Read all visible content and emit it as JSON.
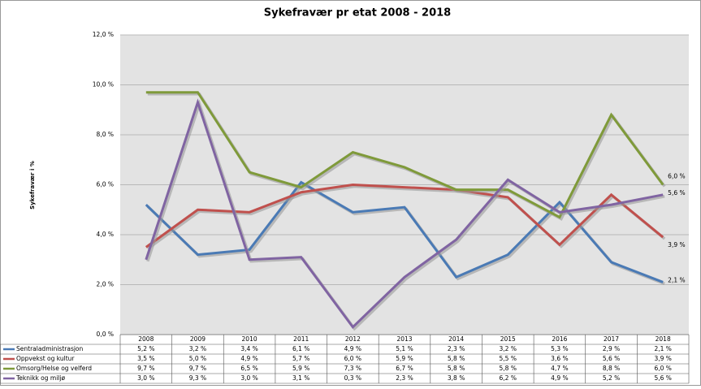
{
  "chart_data": {
    "type": "line",
    "title": "Sykefravær pr etat 2008 - 2018",
    "y_label": "Sykefravær i %",
    "categories": [
      "2008",
      "2009",
      "2010",
      "2011",
      "2012",
      "2013",
      "2014",
      "2015",
      "2016",
      "2017",
      "2018"
    ],
    "ylim": [
      0,
      12
    ],
    "yticks": [
      {
        "value": 0,
        "label": "0,0 %"
      },
      {
        "value": 2,
        "label": "2,0 %"
      },
      {
        "value": 4,
        "label": "4,0 %"
      },
      {
        "value": 6,
        "label": "6,0 %"
      },
      {
        "value": 8,
        "label": "8,0 %"
      },
      {
        "value": 10,
        "label": "10,0 %"
      },
      {
        "value": 12,
        "label": "12,0 %"
      }
    ],
    "grid": true,
    "series": [
      {
        "name": "Sentraladministrasjon",
        "color": "#4a7ab5",
        "values": [
          5.2,
          3.2,
          3.4,
          6.1,
          4.9,
          5.1,
          2.3,
          3.2,
          5.3,
          2.9,
          2.1
        ],
        "value_labels": [
          "5,2 %",
          "3,2 %",
          "3,4 %",
          "6,1 %",
          "4,9 %",
          "5,1 %",
          "2,3 %",
          "3,2 %",
          "5,3 %",
          "2,9 %",
          "2,1 %"
        ]
      },
      {
        "name": "Oppvekst og kultur",
        "color": "#c0504d",
        "values": [
          3.5,
          5.0,
          4.9,
          5.7,
          6.0,
          5.9,
          5.8,
          5.5,
          3.6,
          5.6,
          3.9
        ],
        "value_labels": [
          "3,5 %",
          "5,0 %",
          "4,9 %",
          "5,7 %",
          "6,0 %",
          "5,9 %",
          "5,8 %",
          "5,5 %",
          "3,6 %",
          "5,6 %",
          "3,9 %"
        ]
      },
      {
        "name": "Omsorg/Helse og velferd",
        "color": "#7f9a3a",
        "values": [
          9.7,
          9.7,
          6.5,
          5.9,
          7.3,
          6.7,
          5.8,
          5.8,
          4.7,
          8.8,
          6.0
        ],
        "value_labels": [
          "9,7 %",
          "9,7 %",
          "6,5 %",
          "5,9 %",
          "7,3 %",
          "6,7 %",
          "5,8 %",
          "5,8 %",
          "4,7 %",
          "8,8 %",
          "6,0 %"
        ]
      },
      {
        "name": "Teknikk og miljø",
        "color": "#8064a2",
        "values": [
          3.0,
          9.3,
          3.0,
          3.1,
          0.3,
          2.3,
          3.8,
          6.2,
          4.9,
          5.2,
          5.6
        ],
        "value_labels": [
          "3,0 %",
          "9,3 %",
          "3,0 %",
          "3,1 %",
          "0,3 %",
          "2,3 %",
          "3,8 %",
          "6,2 %",
          "4,9 %",
          "5,2 %",
          "5,6 %"
        ]
      }
    ]
  }
}
